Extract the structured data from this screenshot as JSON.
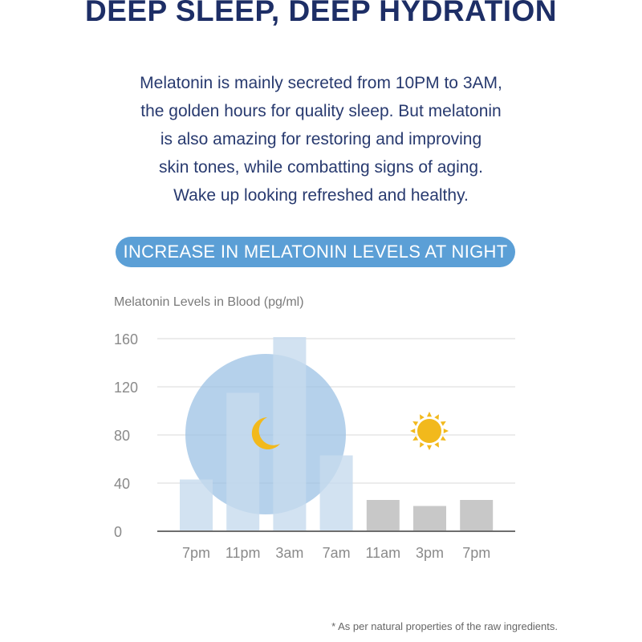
{
  "header": {
    "title": "DEEP SLEEP, DEEP HYDRATION"
  },
  "intro": {
    "lines": [
      "Melatonin is mainly secreted from 10PM to 3AM,",
      "the golden hours for quality sleep. But melatonin",
      "is also amazing for restoring and improving",
      "skin tones, while combatting signs of aging.",
      "Wake up looking refreshed and healthy."
    ]
  },
  "section": {
    "pill_label": "INCREASE IN MELATONIN LEVELS AT NIGHT"
  },
  "footnote": "* As per natural properties of the raw ingredients.",
  "colors": {
    "night_bar": "#c7dbee",
    "day_bar": "#c8c8c8",
    "night_circle": "#9cc2e4",
    "moon": "#f2b91c",
    "sun": "#f2b91c",
    "title": "#1d2e66",
    "pill": "#5b9fd6"
  },
  "icons": {
    "night": "crescent-moon-icon",
    "day": "sun-icon"
  },
  "chart_data": {
    "type": "bar",
    "ylabel": "Melatonin Levels in Blood (pg/ml)",
    "xlabel": "",
    "categories": [
      "7pm",
      "11pm",
      "3am",
      "7am",
      "11am",
      "3pm",
      "7pm"
    ],
    "values": [
      43,
      115,
      162,
      63,
      26,
      21,
      26
    ],
    "period": [
      "night",
      "night",
      "night",
      "night",
      "day",
      "day",
      "day"
    ],
    "ylim": [
      0,
      160
    ],
    "yticks": [
      0,
      40,
      80,
      120,
      160
    ],
    "grid": true
  }
}
